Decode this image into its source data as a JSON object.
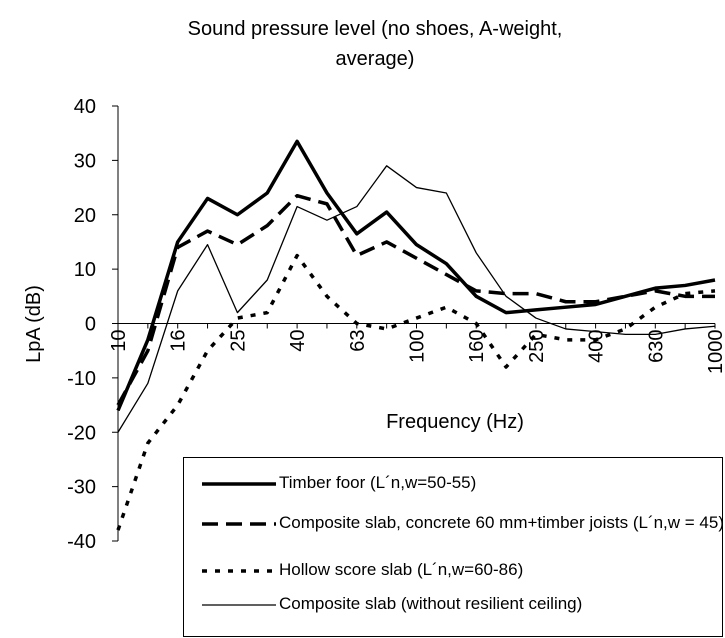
{
  "chart_data": {
    "type": "line",
    "title": "Sound pressure level (no shoes, A-weight, average)",
    "x_label": "Frequency (Hz)",
    "y_label": "LpA (dB)",
    "categories": [
      "10",
      null,
      "16",
      null,
      "25",
      null,
      "40",
      null,
      "63",
      null,
      "100",
      null,
      "160",
      null,
      "250",
      null,
      "400",
      null,
      "630",
      null,
      "1000"
    ],
    "ylim": [
      -40,
      40
    ],
    "yticks": [
      -40,
      -30,
      -20,
      -10,
      0,
      10,
      20,
      30,
      40
    ],
    "series": [
      {
        "name": "Timber foor (L´n,w=50-55)",
        "color": "#000000",
        "values": [
          -16,
          -3,
          15,
          23,
          20,
          24,
          33.5,
          24,
          16.5,
          20.5,
          14.5,
          11,
          5,
          2,
          2.5,
          3,
          3.5,
          5,
          6.5,
          7,
          8
        ]
      },
      {
        "name": "Composite slab, concrete 60 mm+timber joists (L´n,w = 45)",
        "color": "#000000",
        "values": [
          -15,
          -5,
          14,
          17,
          14.5,
          18,
          23.5,
          22,
          12.5,
          15,
          12,
          9,
          6,
          5.5,
          5.5,
          4,
          4,
          5,
          6,
          5,
          5
        ]
      },
      {
        "name": "Hollow score slab (L´n,w=60-86)",
        "color": "#000000",
        "values": [
          -38,
          -22,
          -15,
          -5,
          1,
          2,
          12.5,
          5,
          0,
          -1,
          1,
          3,
          0,
          -8,
          -2,
          -3,
          -3,
          -1,
          3,
          5.5,
          6
        ]
      },
      {
        "name": "Composite slab (without resilient ceiling)",
        "color": "#000000",
        "values": [
          -20,
          -11,
          6,
          14.5,
          2,
          8,
          21.5,
          19,
          21.5,
          29,
          25,
          24,
          13,
          5,
          1,
          -1,
          -1.5,
          -2,
          -2,
          -1,
          -0.5
        ]
      }
    ]
  }
}
